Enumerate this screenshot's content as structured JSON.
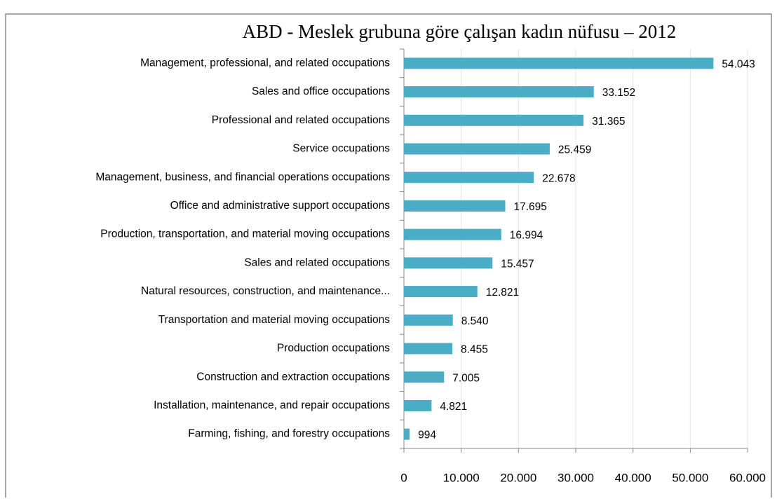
{
  "chart_data": {
    "type": "bar",
    "orientation": "horizontal",
    "title": "ABD - Meslek grubuna göre çalışan kadın nüfusu – 2012",
    "categories": [
      "Management, professional, and related occupations",
      "Sales and office occupations",
      "Professional and related occupations",
      "Service occupations",
      "Management, business, and financial operations occupations",
      "Office and administrative support occupations",
      "Production, transportation, and material moving occupations",
      "Sales and related occupations",
      "Natural resources, construction, and maintenance...",
      "Transportation and material moving occupations",
      "Production occupations",
      "Construction and extraction occupations",
      "Installation, maintenance, and repair occupations",
      "Farming, fishing, and forestry occupations"
    ],
    "values": [
      54043,
      33152,
      31365,
      25459,
      22678,
      17695,
      16994,
      15457,
      12821,
      8540,
      8455,
      7005,
      4821,
      994
    ],
    "value_labels": [
      "54.043",
      "33.152",
      "31.365",
      "25.459",
      "22.678",
      "17.695",
      "16.994",
      "15.457",
      "12.821",
      "8.540",
      "8.455",
      "7.005",
      "4.821",
      "994"
    ],
    "color": "#4bacc6",
    "xlim": [
      0,
      60000
    ],
    "xticks": [
      0,
      {
        "value": 10000,
        "label": "10.000"
      },
      {
        "value": 20000,
        "label": "20.000"
      },
      {
        "value": 30000,
        "label": "30.000"
      },
      {
        "value": 40000,
        "label": "40.000"
      },
      {
        "value": 50000,
        "label": "50.000"
      },
      {
        "value": 60000,
        "label": "60.000"
      }
    ],
    "grid": true
  }
}
